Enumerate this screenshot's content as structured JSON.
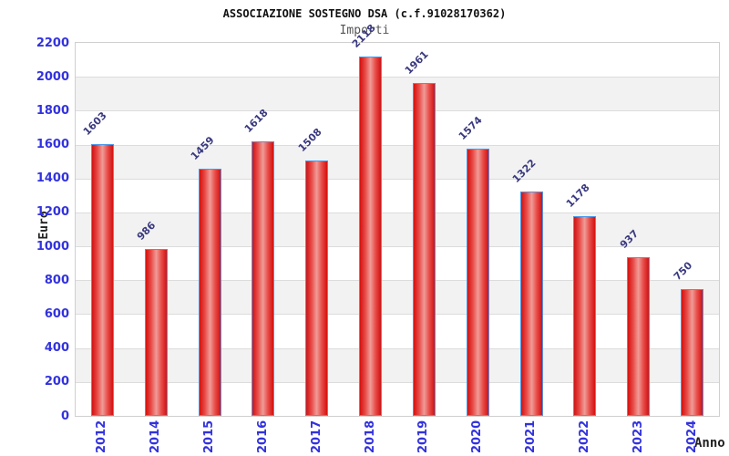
{
  "chart_data": {
    "type": "bar",
    "title": "ASSOCIAZIONE SOSTEGNO DSA (c.f.91028170362)",
    "subtitle": "Importi",
    "xlabel": "Anno",
    "ylabel": "Euro",
    "categories": [
      "2012",
      "2014",
      "2015",
      "2016",
      "2017",
      "2018",
      "2019",
      "2020",
      "2021",
      "2022",
      "2023",
      "2024"
    ],
    "values": [
      1603,
      986,
      1459,
      1618,
      1508,
      2118,
      1961,
      1574,
      1322,
      1178,
      937,
      750
    ],
    "ylim": [
      0,
      2200
    ],
    "ytick_step": 200,
    "yticks": [
      0,
      200,
      400,
      600,
      800,
      1000,
      1200,
      1400,
      1600,
      1800,
      2000,
      2200
    ],
    "grid": "horizontal alternating bands, light gridlines every 200",
    "legend": "none",
    "colors": {
      "title": "#111111",
      "subtitle": "#555555",
      "tick_label": "#3232dd",
      "value_label": "#3a3a80",
      "band_gray": "#f2f2f2",
      "band_white": "#ffffff",
      "grid_line": "#dcdcdc",
      "plot_border": "#cfcfcf",
      "bar_edge": "#4e96e8",
      "bar_fill_dark": "#d01313",
      "bar_fill_mid": "#e84a46",
      "bar_fill_light": "#f09b97",
      "axis_title": "#222222"
    }
  }
}
